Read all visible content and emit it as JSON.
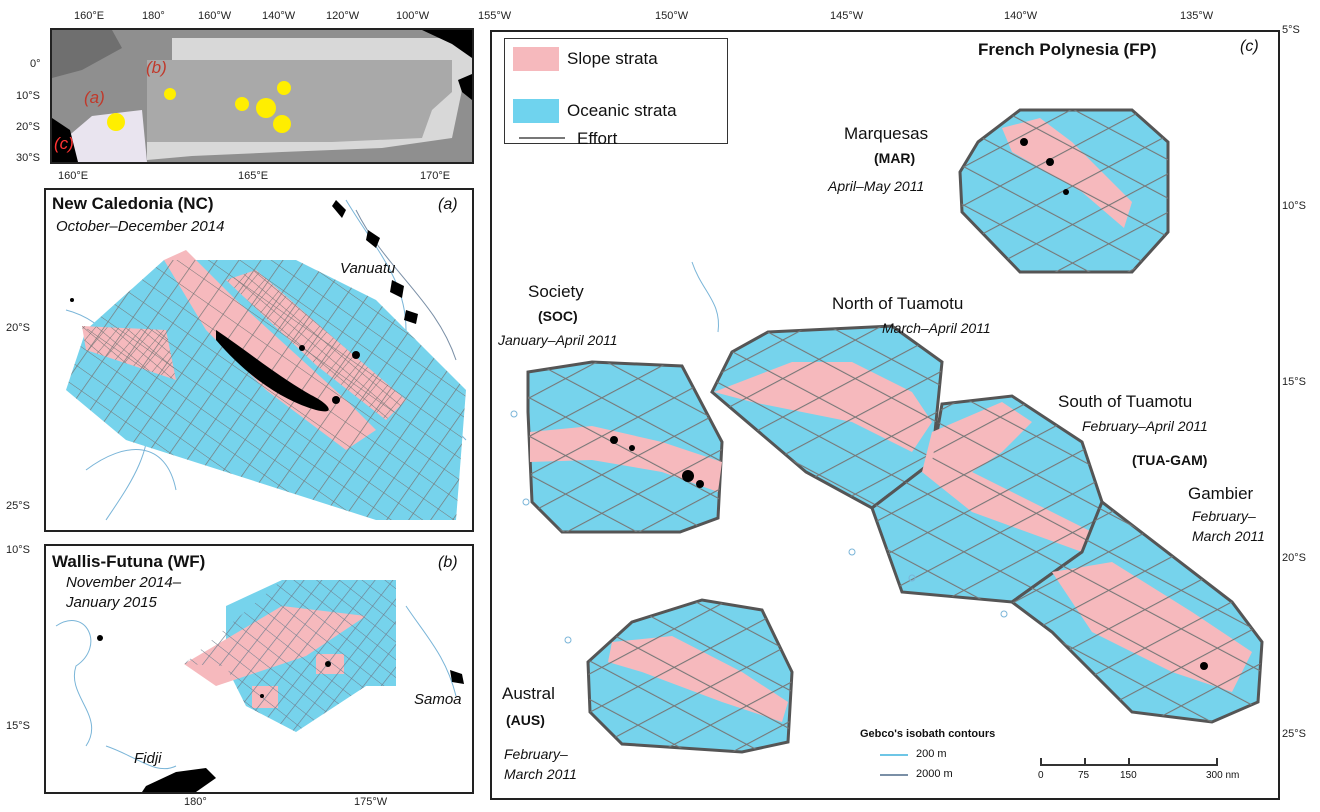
{
  "inset": {
    "lon_ticks": [
      "160°E",
      "180°",
      "160°W",
      "140°W",
      "120°W",
      "100°W"
    ],
    "lat_ticks": [
      "0°",
      "10°S",
      "20°S",
      "30°S"
    ],
    "labels": {
      "a": "(a)",
      "b": "(b)",
      "c": "(c)"
    }
  },
  "panel_a": {
    "title": "New Caledonia (NC)",
    "date": "October–December 2014",
    "label": "(a)",
    "place": "Vanuatu",
    "lon_ticks": [
      "160°E",
      "165°E",
      "170°E"
    ],
    "lat_ticks": [
      "20°S",
      "25°S"
    ]
  },
  "panel_b": {
    "title": "Wallis-Futuna (WF)",
    "date_line1": "November 2014–",
    "date_line2": "January 2015",
    "label": "(b)",
    "places": {
      "samoa": "Samoa",
      "fidji": "Fidji"
    },
    "lon_ticks": [
      "180°",
      "175°W"
    ],
    "lat_ticks": [
      "10°S",
      "15°S"
    ]
  },
  "panel_c": {
    "title": "French Polynesia (FP)",
    "label": "(c)",
    "lon_ticks": [
      "155°W",
      "150°W",
      "145°W",
      "140°W",
      "135°W"
    ],
    "lat_ticks": [
      "5°S",
      "10°S",
      "15°S",
      "20°S",
      "25°S"
    ],
    "legend": {
      "slope": "Slope strata",
      "oceanic": "Oceanic strata",
      "effort": "Effort"
    },
    "regions": {
      "mar": {
        "name": "Marquesas",
        "code": "(MAR)",
        "date": "April–May 2011"
      },
      "soc": {
        "name": "Society",
        "code": "(SOC)",
        "date": "January–April 2011"
      },
      "ntua": {
        "name": "North of Tuamotu",
        "date": "March–April 2011"
      },
      "stua": {
        "name": "South of Tuamotu",
        "date": "February–April 2011",
        "code": "(TUA-GAM)"
      },
      "gam": {
        "name": "Gambier",
        "date1": "February–",
        "date2": "March 2011"
      },
      "aus": {
        "name": "Austral",
        "code": "(AUS)",
        "date1": "February–",
        "date2": "March 2011"
      }
    },
    "isobath": {
      "title": "Gebco's isobath contours",
      "c200": "200 m",
      "c2000": "2000 m"
    },
    "scale": {
      "t0": "0",
      "t1": "75",
      "t2": "150",
      "t3": "300 nm"
    }
  },
  "colors": {
    "slope": "#f6b9bd",
    "oceanic": "#6fd3ee",
    "effort": "#777777",
    "land": "#000000",
    "highlight": "#ffee00",
    "contour200": "#6ec6e6",
    "contour2000": "#7a8fa6"
  }
}
